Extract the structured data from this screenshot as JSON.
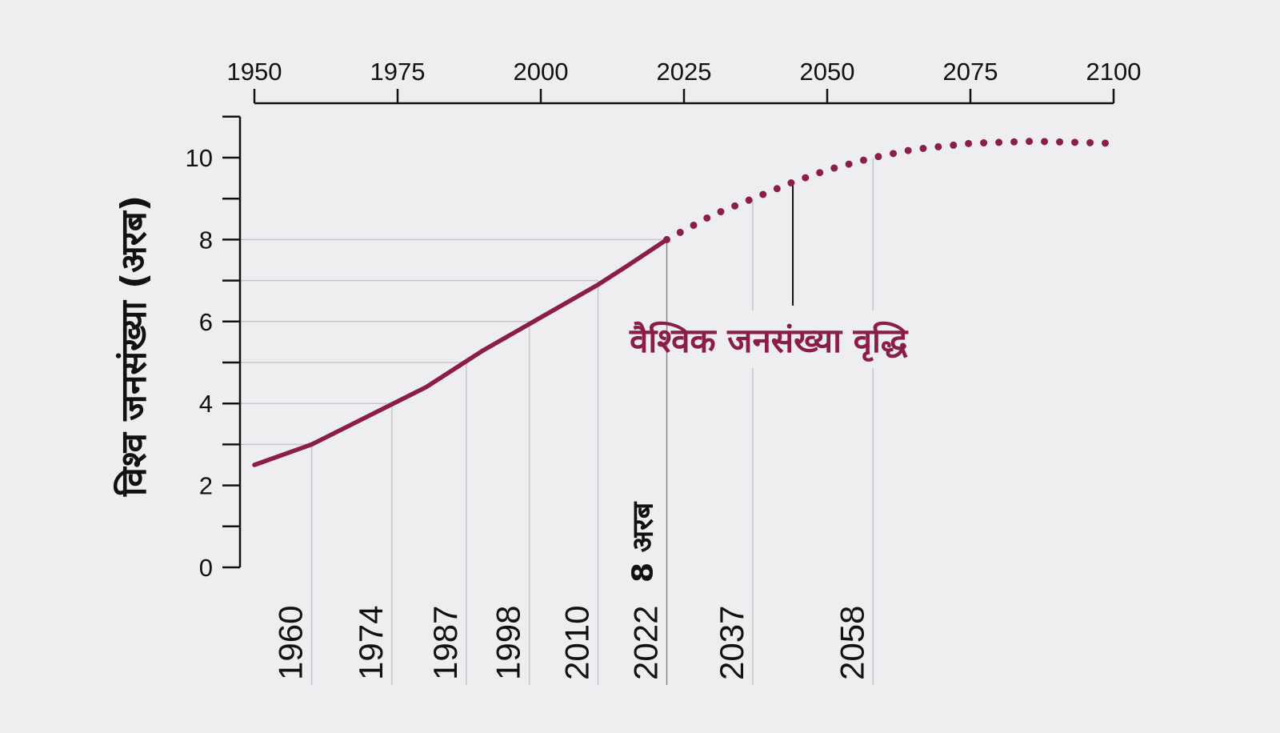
{
  "chart_data": {
    "type": "line",
    "title": "वैश्विक जनसंख्या वृद्धि",
    "ylabel": "विश्व जनसंख्या (अरब)",
    "xlabel": "",
    "xlim": [
      1950,
      2100
    ],
    "ylim": [
      0,
      11
    ],
    "x_ticks": [
      "1950",
      "1975",
      "2000",
      "2025",
      "2050",
      "2075",
      "2100"
    ],
    "y_ticks": [
      "0",
      "2",
      "4",
      "6",
      "8",
      "10"
    ],
    "grid": false,
    "colors": {
      "line": "#8b1d4a",
      "axis": "#111111",
      "guide": "#c8c8cc",
      "background": "#eeeef1"
    },
    "series": [
      {
        "style": "solid",
        "x": [
          1950,
          1960,
          1970,
          1980,
          1990,
          2000,
          2010,
          2015,
          2022
        ],
        "y": [
          2.5,
          3.0,
          3.7,
          4.4,
          5.3,
          6.1,
          6.9,
          7.35,
          8.0
        ]
      },
      {
        "style": "dotted",
        "x": [
          2022,
          2030,
          2037,
          2044,
          2050,
          2058,
          2065,
          2075,
          2086,
          2100
        ],
        "y": [
          8.0,
          8.6,
          9.0,
          9.4,
          9.7,
          10.0,
          10.2,
          10.35,
          10.4,
          10.35
        ]
      }
    ],
    "milestones": [
      {
        "year": "1960",
        "x": 1960,
        "population": 3
      },
      {
        "year": "1974",
        "x": 1974,
        "population": 4
      },
      {
        "year": "1987",
        "x": 1987,
        "population": 5
      },
      {
        "year": "1998",
        "x": 1998,
        "population": 6
      },
      {
        "year": "2010",
        "x": 2010,
        "population": 7
      },
      {
        "year": "2022",
        "x": 2022,
        "population": 8
      },
      {
        "year": "2037",
        "x": 2037,
        "population": 9
      },
      {
        "year": "2058",
        "x": 2058,
        "population": 10
      }
    ],
    "annotation": {
      "text": "8 अरब",
      "x": 2022
    },
    "title_pointer_x": 2044
  }
}
